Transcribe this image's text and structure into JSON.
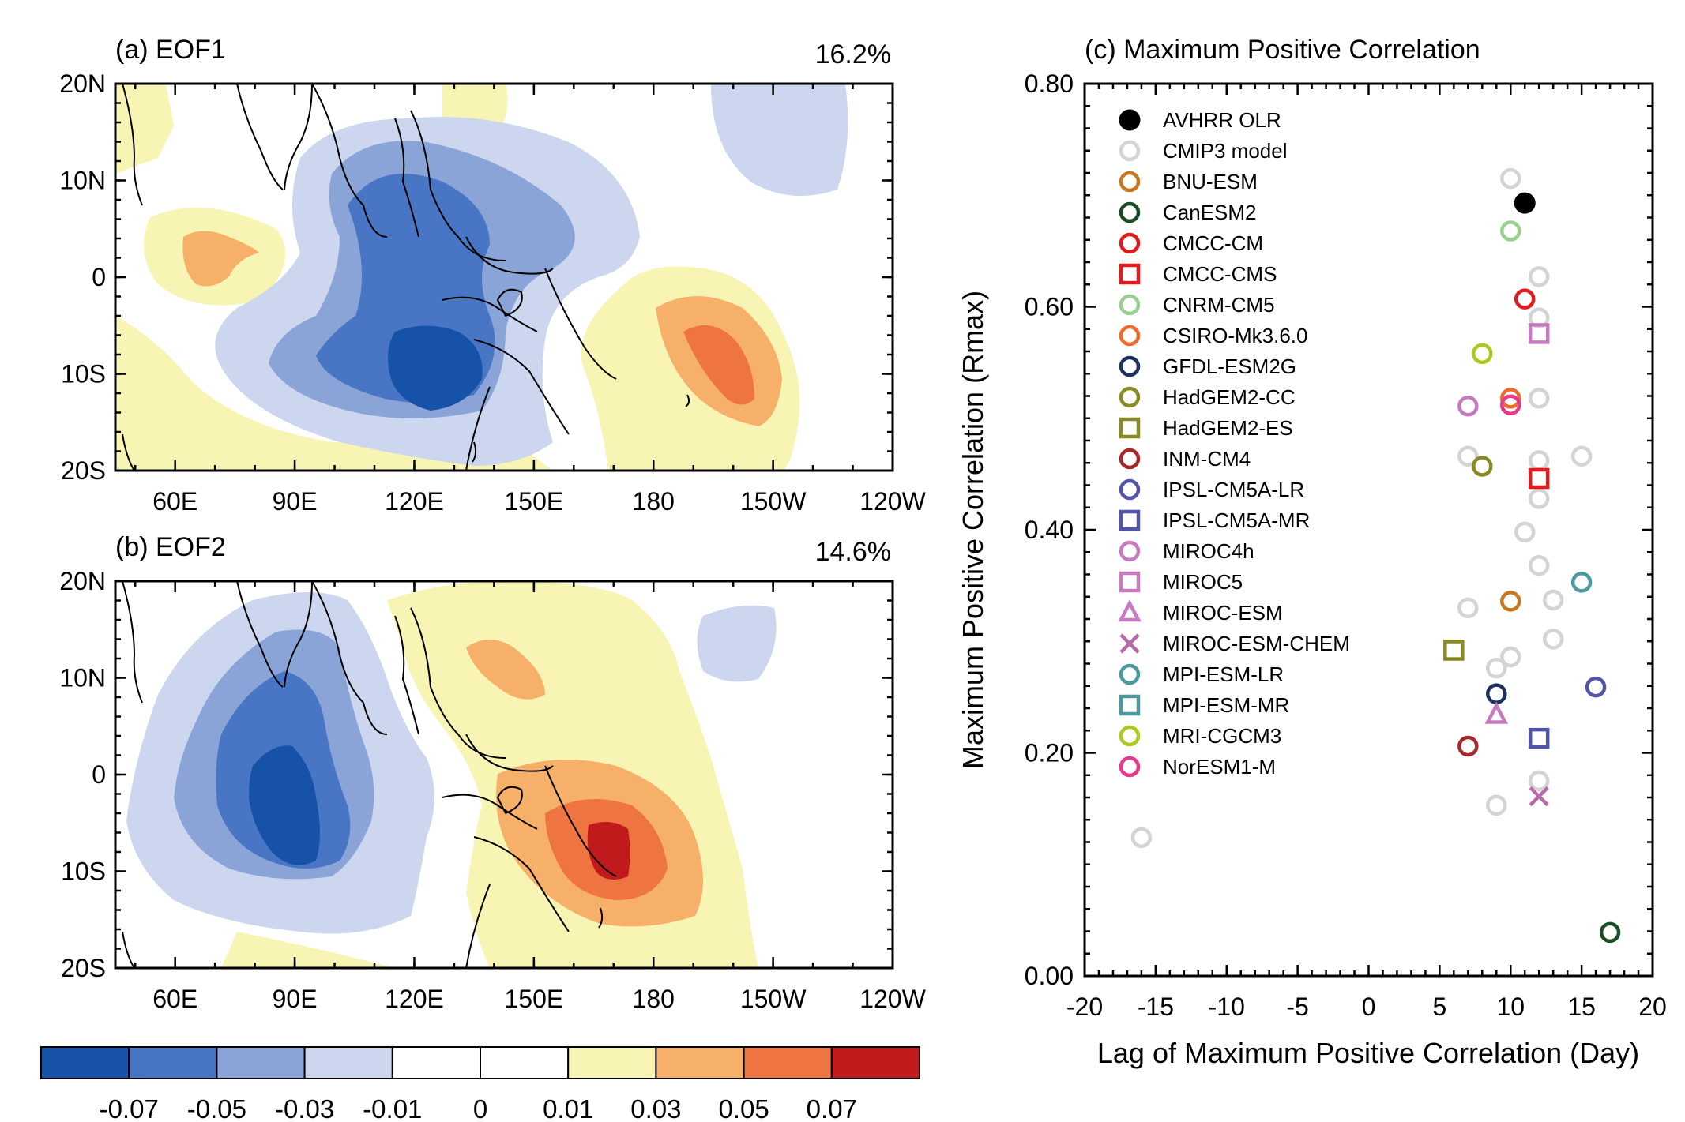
{
  "colors": {
    "neg4": "#1653a8",
    "neg3": "#4876c4",
    "neg2": "#8aa4d8",
    "neg1": "#ccd6ef",
    "zero": "#ffffff",
    "pos1": "#f8f4b4",
    "pos2": "#f6b06a",
    "pos3": "#ee7442",
    "pos4": "#c01a1c"
  },
  "map_axes": {
    "lat_labels": [
      "20N",
      "10N",
      "0",
      "10S",
      "20S"
    ],
    "lon_labels": [
      "60E",
      "90E",
      "120E",
      "150E",
      "180",
      "150W",
      "120W"
    ]
  },
  "panels": {
    "a": {
      "title": "(a) EOF1",
      "variance": "16.2%"
    },
    "b": {
      "title": "(b) EOF2",
      "variance": "14.6%"
    }
  },
  "colorbar": {
    "labels": [
      "-0.07",
      "-0.05",
      "-0.03",
      "-0.01",
      "0",
      "0.01",
      "0.03",
      "0.05",
      "0.07"
    ]
  },
  "chart_data": {
    "type": "scatter",
    "title": "(c) Maximum Positive Correlation",
    "xlabel": "Lag of Maximum Positive Correlation (Day)",
    "ylabel": "Maximum Positive Correlation (Rmax)",
    "xlim": [
      -20,
      20
    ],
    "ylim": [
      0,
      0.8
    ],
    "x_ticks": [
      "-20",
      "-15",
      "-10",
      "-5",
      "0",
      "5",
      "10",
      "15",
      "20"
    ],
    "y_ticks": [
      "0.00",
      "0.20",
      "0.40",
      "0.60",
      "0.80"
    ],
    "legend_position": "top-left",
    "series": [
      {
        "name": "AVHRR OLR",
        "marker": "filled-circle",
        "color": "#000000",
        "points": [
          [
            11,
            0.693
          ]
        ]
      },
      {
        "name": "CMIP3 model",
        "marker": "circle",
        "color": "#d4d4d4",
        "points": [
          [
            10,
            0.715
          ],
          [
            12,
            0.627
          ],
          [
            12,
            0.59
          ],
          [
            12,
            0.518
          ],
          [
            7,
            0.466
          ],
          [
            12,
            0.462
          ],
          [
            15,
            0.466
          ],
          [
            12,
            0.428
          ],
          [
            11,
            0.398
          ],
          [
            12,
            0.368
          ],
          [
            13,
            0.337
          ],
          [
            7,
            0.33
          ],
          [
            13,
            0.302
          ],
          [
            10,
            0.286
          ],
          [
            9,
            0.276
          ],
          [
            12,
            0.175
          ],
          [
            9,
            0.153
          ],
          [
            -16,
            0.124
          ]
        ]
      },
      {
        "name": "BNU-ESM",
        "marker": "circle",
        "color": "#c8781e",
        "points": [
          [
            10,
            0.336
          ]
        ]
      },
      {
        "name": "CanESM2",
        "marker": "circle",
        "color": "#1a4d26",
        "points": [
          [
            17,
            0.039
          ]
        ]
      },
      {
        "name": "CMCC-CM",
        "marker": "circle",
        "color": "#e41a1c",
        "points": [
          [
            11,
            0.607
          ]
        ]
      },
      {
        "name": "CMCC-CMS",
        "marker": "square",
        "color": "#e41a1c",
        "points": [
          [
            12,
            0.446
          ]
        ]
      },
      {
        "name": "CNRM-CM5",
        "marker": "circle",
        "color": "#98d090",
        "points": [
          [
            10,
            0.668
          ]
        ]
      },
      {
        "name": "CSIRO-Mk3.6.0",
        "marker": "circle",
        "color": "#f06a2a",
        "points": [
          [
            10,
            0.518
          ]
        ]
      },
      {
        "name": "GFDL-ESM2G",
        "marker": "circle",
        "color": "#1c3260",
        "points": [
          [
            9,
            0.253
          ]
        ]
      },
      {
        "name": "HadGEM2-CC",
        "marker": "circle",
        "color": "#8a8a24",
        "points": [
          [
            8,
            0.457
          ]
        ]
      },
      {
        "name": "HadGEM2-ES",
        "marker": "square",
        "color": "#8a8a24",
        "points": [
          [
            6,
            0.292
          ]
        ]
      },
      {
        "name": "INM-CM4",
        "marker": "circle",
        "color": "#a8282a",
        "points": [
          [
            7,
            0.206
          ]
        ]
      },
      {
        "name": "IPSL-CM5A-LR",
        "marker": "circle",
        "color": "#5254a8",
        "points": [
          [
            16,
            0.259
          ]
        ]
      },
      {
        "name": "IPSL-CM5A-MR",
        "marker": "square",
        "color": "#5254a8",
        "points": [
          [
            12,
            0.213
          ]
        ]
      },
      {
        "name": "MIROC4h",
        "marker": "circle",
        "color": "#c87ac0",
        "points": [
          [
            7,
            0.511
          ]
        ]
      },
      {
        "name": "MIROC5",
        "marker": "square",
        "color": "#c87ac0",
        "points": [
          [
            12,
            0.576
          ]
        ]
      },
      {
        "name": "MIROC-ESM",
        "marker": "triangle",
        "color": "#c87ac0",
        "points": [
          [
            9,
            0.234
          ]
        ]
      },
      {
        "name": "MIROC-ESM-CHEM",
        "marker": "cross",
        "color": "#b86aa8",
        "points": [
          [
            12,
            0.161
          ]
        ]
      },
      {
        "name": "MPI-ESM-LR",
        "marker": "circle",
        "color": "#4a9a9e",
        "points": [
          [
            15,
            0.353
          ]
        ]
      },
      {
        "name": "MPI-ESM-MR",
        "marker": "square",
        "color": "#4a9a9e",
        "points": []
      },
      {
        "name": "MRI-CGCM3",
        "marker": "circle",
        "color": "#a8cc1c",
        "points": [
          [
            8,
            0.558
          ]
        ]
      },
      {
        "name": "NorESM1-M",
        "marker": "circle",
        "color": "#e8388a",
        "points": [
          [
            10,
            0.512
          ]
        ]
      }
    ]
  }
}
